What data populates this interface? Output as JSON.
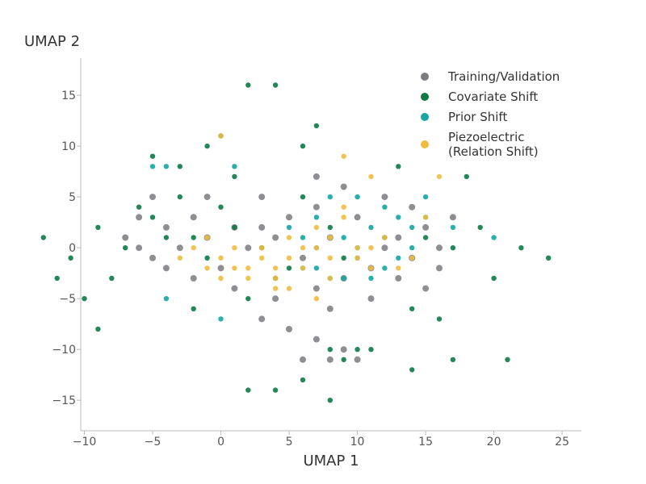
{
  "chart_data": {
    "type": "scatter",
    "xlabel": "UMAP 1",
    "ylabel": "UMAP 2",
    "xlim": [
      -15,
      26
    ],
    "ylim": [
      -18,
      18.5
    ],
    "x_ticks": [
      -10,
      -5,
      0,
      5,
      10,
      15,
      20,
      25
    ],
    "y_ticks": [
      -15,
      -10,
      -5,
      0,
      5,
      10,
      15
    ],
    "x_tick_labels": [
      "−10",
      "−5",
      "0",
      "5",
      "10",
      "15",
      "20",
      "25"
    ],
    "y_tick_labels": [
      "−15",
      "−10",
      "−5",
      "0",
      "5",
      "10",
      "15"
    ],
    "grid": false,
    "legend_position": "top-right",
    "series": [
      {
        "name": "Training/Validation",
        "color": "#7a7a80",
        "points": [
          [
            -6,
            3
          ],
          [
            -5,
            5
          ],
          [
            -4,
            2
          ],
          [
            -3,
            0
          ],
          [
            -2,
            3
          ],
          [
            -1,
            1
          ],
          [
            0,
            -2
          ],
          [
            1,
            -4
          ],
          [
            -4,
            -2
          ],
          [
            -6,
            0
          ],
          [
            -5,
            -1
          ],
          [
            -2,
            -3
          ],
          [
            2,
            0
          ],
          [
            3,
            2
          ],
          [
            4,
            1
          ],
          [
            5,
            3
          ],
          [
            6,
            -1
          ],
          [
            7,
            4
          ],
          [
            8,
            1
          ],
          [
            9,
            6
          ],
          [
            10,
            3
          ],
          [
            11,
            -2
          ],
          [
            12,
            0
          ],
          [
            13,
            1
          ],
          [
            14,
            4
          ],
          [
            15,
            2
          ],
          [
            16,
            0
          ],
          [
            17,
            3
          ],
          [
            4,
            -5
          ],
          [
            5,
            -8
          ],
          [
            6,
            -11
          ],
          [
            7,
            -9
          ],
          [
            8,
            -11
          ],
          [
            9,
            -10
          ],
          [
            10,
            -11
          ],
          [
            7,
            -4
          ],
          [
            8,
            -6
          ],
          [
            11,
            -5
          ],
          [
            13,
            -3
          ],
          [
            15,
            -4
          ],
          [
            3,
            -7
          ],
          [
            7,
            7
          ],
          [
            -1,
            5
          ],
          [
            12,
            5
          ],
          [
            -7,
            1
          ],
          [
            16,
            -2
          ],
          [
            3,
            5
          ],
          [
            1,
            2
          ],
          [
            9,
            -3
          ],
          [
            14,
            -1
          ]
        ]
      },
      {
        "name": "Covariate Shift",
        "color": "#0b7a45",
        "points": [
          [
            -7,
            0
          ],
          [
            -6,
            4
          ],
          [
            -5,
            3
          ],
          [
            -3,
            5
          ],
          [
            -2,
            1
          ],
          [
            0,
            4
          ],
          [
            1,
            2
          ],
          [
            3,
            0
          ],
          [
            5,
            -2
          ],
          [
            6,
            5
          ],
          [
            8,
            2
          ],
          [
            9,
            -1
          ],
          [
            10,
            -10
          ],
          [
            9,
            -11
          ],
          [
            11,
            -10
          ],
          [
            8,
            -10
          ],
          [
            12,
            1
          ],
          [
            15,
            1
          ],
          [
            17,
            0
          ],
          [
            14,
            -6
          ],
          [
            4,
            -3
          ],
          [
            2,
            -5
          ],
          [
            -1,
            -1
          ],
          [
            -4,
            1
          ],
          [
            0,
            11
          ],
          [
            4,
            16
          ],
          [
            2,
            16
          ],
          [
            -1,
            10
          ],
          [
            -5,
            9
          ],
          [
            -3,
            8
          ],
          [
            -9,
            2
          ],
          [
            -11,
            -1
          ],
          [
            -13,
            1
          ],
          [
            -12,
            -3
          ],
          [
            -9,
            -8
          ],
          [
            -8,
            -3
          ],
          [
            -2,
            -6
          ],
          [
            6,
            -13
          ],
          [
            4,
            -14
          ],
          [
            2,
            -14
          ],
          [
            8,
            -15
          ],
          [
            14,
            -12
          ],
          [
            17,
            -11
          ],
          [
            19,
            2
          ],
          [
            22,
            0
          ],
          [
            24,
            -1
          ],
          [
            21,
            -11
          ],
          [
            -10,
            -5
          ],
          [
            1,
            7
          ],
          [
            6,
            10
          ],
          [
            7,
            12
          ],
          [
            13,
            8
          ],
          [
            18,
            7
          ],
          [
            20,
            -3
          ],
          [
            16,
            -7
          ]
        ]
      },
      {
        "name": "Prior Shift",
        "color": "#13a6a3",
        "points": [
          [
            5,
            2
          ],
          [
            6,
            -2
          ],
          [
            7,
            0
          ],
          [
            8,
            -3
          ],
          [
            9,
            1
          ],
          [
            10,
            -1
          ],
          [
            11,
            2
          ],
          [
            12,
            -2
          ],
          [
            13,
            3
          ],
          [
            14,
            0
          ],
          [
            15,
            5
          ],
          [
            8,
            5
          ],
          [
            10,
            5
          ],
          [
            11,
            -3
          ],
          [
            9,
            -3
          ],
          [
            6,
            1
          ],
          [
            7,
            3
          ],
          [
            12,
            4
          ],
          [
            -5,
            8
          ],
          [
            -4,
            8
          ],
          [
            1,
            8
          ],
          [
            0,
            -7
          ],
          [
            -4,
            -5
          ],
          [
            17,
            2
          ],
          [
            20,
            1
          ],
          [
            15,
            3
          ],
          [
            13,
            -1
          ],
          [
            10,
            0
          ],
          [
            7,
            -2
          ],
          [
            14,
            2
          ]
        ]
      },
      {
        "name": "Piezoelectric\n(Relation Shift)",
        "color": "#f0bc40",
        "points": [
          [
            -2,
            0
          ],
          [
            -1,
            -2
          ],
          [
            0,
            -1
          ],
          [
            1,
            0
          ],
          [
            2,
            -3
          ],
          [
            3,
            -1
          ],
          [
            4,
            -3
          ],
          [
            5,
            -4
          ],
          [
            6,
            -2
          ],
          [
            7,
            2
          ],
          [
            8,
            1
          ],
          [
            9,
            3
          ],
          [
            10,
            -1
          ],
          [
            11,
            0
          ],
          [
            12,
            1
          ],
          [
            13,
            -2
          ],
          [
            -1,
            1
          ],
          [
            0,
            -3
          ],
          [
            1,
            -2
          ],
          [
            3,
            0
          ],
          [
            4,
            -4
          ],
          [
            5,
            -1
          ],
          [
            7,
            -5
          ],
          [
            8,
            -1
          ],
          [
            10,
            0
          ],
          [
            9,
            4
          ],
          [
            6,
            0
          ],
          [
            2,
            -2
          ],
          [
            11,
            -2
          ],
          [
            14,
            -1
          ],
          [
            -3,
            -1
          ],
          [
            8,
            -3
          ],
          [
            7,
            0
          ],
          [
            4,
            -2
          ],
          [
            0,
            11
          ],
          [
            9,
            9
          ],
          [
            11,
            7
          ],
          [
            16,
            7
          ],
          [
            15,
            3
          ],
          [
            5,
            1
          ]
        ]
      }
    ]
  }
}
